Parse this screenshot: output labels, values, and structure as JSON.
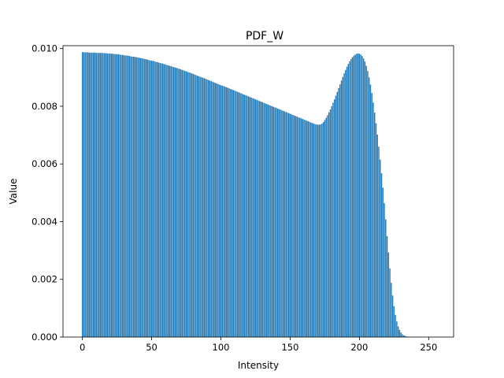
{
  "chart_data": {
    "type": "bar",
    "title": "PDF_W",
    "xlabel": "Intensity",
    "ylabel": "Value",
    "xlim": [
      -14,
      268
    ],
    "ylim": [
      0,
      0.0101
    ],
    "xticks": [
      0,
      50,
      100,
      150,
      200,
      250
    ],
    "xtick_labels": [
      "0",
      "50",
      "100",
      "150",
      "200",
      "250"
    ],
    "yticks": [
      0,
      0.002,
      0.004,
      0.006,
      0.008,
      0.01
    ],
    "ytick_labels": [
      "0.000",
      "0.002",
      "0.004",
      "0.006",
      "0.008",
      "0.010"
    ],
    "color": "#1f77b4",
    "grid": false,
    "x_start": 0,
    "values": [
      0.00988,
      0.00987,
      0.00987,
      0.00987,
      0.00987,
      0.00986,
      0.00986,
      0.00986,
      0.00986,
      0.00986,
      0.00985,
      0.00985,
      0.00985,
      0.00985,
      0.00985,
      0.00984,
      0.00984,
      0.00984,
      0.00983,
      0.00983,
      0.00983,
      0.00982,
      0.00982,
      0.00981,
      0.00981,
      0.0098,
      0.0098,
      0.00979,
      0.00978,
      0.00978,
      0.00977,
      0.00976,
      0.00976,
      0.00975,
      0.00974,
      0.00973,
      0.00972,
      0.00972,
      0.00971,
      0.0097,
      0.00969,
      0.00968,
      0.00967,
      0.00966,
      0.00965,
      0.00964,
      0.00963,
      0.00962,
      0.0096,
      0.00959,
      0.00958,
      0.00957,
      0.00956,
      0.00954,
      0.00953,
      0.00952,
      0.0095,
      0.00949,
      0.00948,
      0.00946,
      0.00945,
      0.00943,
      0.00942,
      0.0094,
      0.00939,
      0.00937,
      0.00936,
      0.00934,
      0.00933,
      0.00931,
      0.0093,
      0.00928,
      0.00926,
      0.00924,
      0.00923,
      0.00921,
      0.00919,
      0.00917,
      0.00916,
      0.00914,
      0.00912,
      0.0091,
      0.00908,
      0.00906,
      0.00904,
      0.00902,
      0.00901,
      0.00899,
      0.00897,
      0.00895,
      0.00893,
      0.00891,
      0.00889,
      0.00887,
      0.00885,
      0.00883,
      0.00881,
      0.00879,
      0.00877,
      0.00875,
      0.00873,
      0.00871,
      0.0087,
      0.00868,
      0.00866,
      0.00864,
      0.00862,
      0.0086,
      0.00858,
      0.00856,
      0.00854,
      0.00852,
      0.0085,
      0.00848,
      0.00846,
      0.00844,
      0.00842,
      0.0084,
      0.00838,
      0.00836,
      0.00834,
      0.00832,
      0.0083,
      0.00828,
      0.00826,
      0.00824,
      0.00822,
      0.0082,
      0.00818,
      0.00816,
      0.00814,
      0.00812,
      0.0081,
      0.00808,
      0.00806,
      0.00804,
      0.00802,
      0.008,
      0.00798,
      0.00796,
      0.00794,
      0.00792,
      0.0079,
      0.00788,
      0.00786,
      0.00784,
      0.00782,
      0.0078,
      0.00778,
      0.00776,
      0.00774,
      0.00772,
      0.0077,
      0.00768,
      0.00766,
      0.00764,
      0.00762,
      0.0076,
      0.00758,
      0.00756,
      0.00754,
      0.00752,
      0.0075,
      0.00748,
      0.00746,
      0.00744,
      0.00742,
      0.0074,
      0.00738,
      0.00737,
      0.00736,
      0.00736,
      0.00737,
      0.0074,
      0.00745,
      0.00752,
      0.0076,
      0.00769,
      0.00779,
      0.00789,
      0.008,
      0.00812,
      0.00824,
      0.00837,
      0.0085,
      0.00863,
      0.00876,
      0.00889,
      0.00902,
      0.00914,
      0.00926,
      0.00937,
      0.00947,
      0.00956,
      0.00964,
      0.0097,
      0.00975,
      0.00979,
      0.00982,
      0.00983,
      0.00982,
      0.00979,
      0.00974,
      0.00966,
      0.00955,
      0.0094,
      0.00922,
      0.009,
      0.00875,
      0.00846,
      0.00813,
      0.00778,
      0.00741,
      0.00702,
      0.0066,
      0.00615,
      0.00568,
      0.00518,
      0.00464,
      0.00408,
      0.0035,
      0.00293,
      0.00238,
      0.00188,
      0.00144,
      0.00107,
      0.00077,
      0.00054,
      0.00037,
      0.00025,
      0.00016,
      0.0001,
      6e-05,
      4e-05,
      2e-05,
      1e-05,
      1e-05,
      0.0,
      0.0,
      0.0,
      0.0,
      0.0,
      0.0,
      0.0,
      0.0
    ]
  }
}
